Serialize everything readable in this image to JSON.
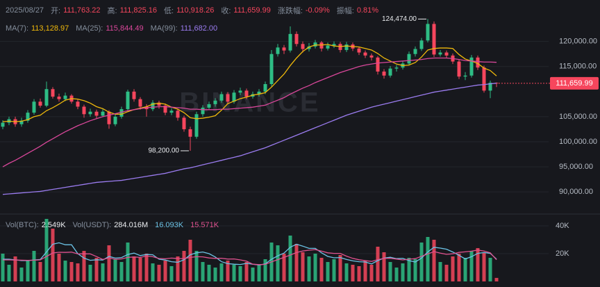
{
  "chart_data": {
    "type": "candlestick",
    "header": {
      "date": "2025/08/27",
      "fields": [
        {
          "label": "开:",
          "value": "111,763.22"
        },
        {
          "label": "高:",
          "value": "111,825.16"
        },
        {
          "label": "低:",
          "value": "110,918.26"
        },
        {
          "label": "收:",
          "value": "111,659.99"
        },
        {
          "label": "涨跌幅:",
          "value": "-0.09%"
        },
        {
          "label": "振幅:",
          "value": "0.81%"
        }
      ]
    },
    "watermark": "BINANCE",
    "ylim": [
      86000,
      125500
    ],
    "yticks": [
      {
        "value": 90000,
        "label": "90,000.00"
      },
      {
        "value": 95000,
        "label": "95,000.00"
      },
      {
        "value": 100000,
        "label": "100,000.00"
      },
      {
        "value": 105000,
        "label": "105,000.00"
      },
      {
        "value": 115000,
        "label": "115,000.00"
      },
      {
        "value": 120000,
        "label": "120,000.00"
      }
    ],
    "grid": true,
    "up_color": "#2ebd85",
    "down_color": "#f6465d",
    "candles": [
      [
        103000,
        104300,
        102500,
        103800
      ],
      [
        103800,
        105000,
        103300,
        104500
      ],
      [
        104500,
        105000,
        103000,
        103500
      ],
      [
        103500,
        104800,
        103000,
        104200
      ],
      [
        104200,
        106300,
        103800,
        105800
      ],
      [
        105800,
        108500,
        105400,
        108000
      ],
      [
        108000,
        108600,
        106800,
        107200
      ],
      [
        107200,
        112000,
        106900,
        110500
      ],
      [
        110500,
        110900,
        108600,
        109000
      ],
      [
        109000,
        109600,
        108000,
        108500
      ],
      [
        108500,
        109800,
        108100,
        109200
      ],
      [
        109200,
        109500,
        107600,
        108000
      ],
      [
        108000,
        108400,
        106500,
        107000
      ],
      [
        107000,
        107400,
        104800,
        105500
      ],
      [
        105500,
        106600,
        105000,
        106000
      ],
      [
        106000,
        106400,
        104700,
        105200
      ],
      [
        105200,
        106500,
        104900,
        106000
      ],
      [
        106000,
        106300,
        102600,
        103500
      ],
      [
        103500,
        105400,
        103100,
        105000
      ],
      [
        105000,
        107000,
        104600,
        106500
      ],
      [
        106500,
        110400,
        106200,
        110000
      ],
      [
        110000,
        110500,
        108000,
        108500
      ],
      [
        108500,
        108900,
        106400,
        107000
      ],
      [
        107000,
        107500,
        105000,
        106500
      ],
      [
        106500,
        108300,
        106100,
        107800
      ],
      [
        107800,
        108200,
        106600,
        107200
      ],
      [
        107200,
        107600,
        105300,
        105800
      ],
      [
        105800,
        106700,
        105300,
        106200
      ],
      [
        106200,
        106600,
        104200,
        104800
      ],
      [
        104800,
        105200,
        102000,
        102500
      ],
      [
        102500,
        103000,
        98200,
        101000
      ],
      [
        101000,
        106000,
        100600,
        105500
      ],
      [
        105500,
        107300,
        105000,
        106800
      ],
      [
        106800,
        108000,
        106300,
        107500
      ],
      [
        107500,
        108700,
        107000,
        108200
      ],
      [
        108200,
        110000,
        107800,
        109500
      ],
      [
        109500,
        109900,
        107500,
        108000
      ],
      [
        108000,
        110300,
        107600,
        109800
      ],
      [
        109800,
        110800,
        109300,
        110200
      ],
      [
        110200,
        110600,
        108500,
        109000
      ],
      [
        109000,
        110000,
        108600,
        109500
      ],
      [
        109500,
        110500,
        109000,
        110000
      ],
      [
        110000,
        112000,
        109500,
        111500
      ],
      [
        111500,
        118300,
        111000,
        117500
      ],
      [
        117500,
        119500,
        117000,
        118800
      ],
      [
        118800,
        119300,
        117500,
        118200
      ],
      [
        118200,
        123000,
        117800,
        121500
      ],
      [
        121500,
        122000,
        119000,
        119500
      ],
      [
        119500,
        120000,
        117800,
        118500
      ],
      [
        118500,
        119700,
        118000,
        119000
      ],
      [
        119000,
        120300,
        118600,
        119800
      ],
      [
        119800,
        120100,
        118000,
        118600
      ],
      [
        118600,
        119800,
        118200,
        119200
      ],
      [
        119200,
        120000,
        118700,
        119500
      ],
      [
        119500,
        119900,
        117800,
        118300
      ],
      [
        118300,
        119900,
        117900,
        119400
      ],
      [
        119400,
        119800,
        118100,
        118600
      ],
      [
        118600,
        119000,
        117300,
        117800
      ],
      [
        117800,
        118200,
        116700,
        117200
      ],
      [
        117200,
        117600,
        116200,
        116800
      ],
      [
        116800,
        117100,
        113400,
        114000
      ],
      [
        114000,
        114500,
        112600,
        113200
      ],
      [
        113200,
        115100,
        112800,
        114600
      ],
      [
        114600,
        115300,
        114000,
        114800
      ],
      [
        114800,
        116100,
        114400,
        115600
      ],
      [
        115600,
        118000,
        115200,
        117500
      ],
      [
        117500,
        119000,
        117000,
        118500
      ],
      [
        118500,
        120700,
        118100,
        120200
      ],
      [
        120200,
        124474,
        119800,
        123500
      ],
      [
        123500,
        124000,
        116900,
        117400
      ],
      [
        117400,
        118300,
        117000,
        117800
      ],
      [
        117800,
        118200,
        116700,
        117200
      ],
      [
        117200,
        117600,
        115500,
        116000
      ],
      [
        116000,
        116400,
        112500,
        113000
      ],
      [
        113000,
        113900,
        112300,
        113200
      ],
      [
        113200,
        117300,
        112800,
        116800
      ],
      [
        116800,
        117200,
        114300,
        114800
      ],
      [
        114800,
        115200,
        109800,
        110200
      ],
      [
        110200,
        112200,
        108700,
        111763.22
      ],
      [
        111763.22,
        111825.16,
        110918.26,
        111659.99
      ]
    ],
    "series": [
      {
        "name": "MA(7):",
        "last_label": "113,128.97",
        "color": "#f0b90b",
        "values": [
          104000,
          104100,
          104000,
          104100,
          104400,
          105000,
          105300,
          106200,
          106800,
          107500,
          108300,
          108600,
          108500,
          108200,
          107700,
          107000,
          106600,
          105900,
          105500,
          105500,
          106000,
          106400,
          106700,
          107000,
          107500,
          107700,
          107500,
          106900,
          106500,
          105800,
          104800,
          104600,
          104700,
          104900,
          105200,
          106300,
          107600,
          108100,
          108600,
          108900,
          109300,
          109500,
          109800,
          110900,
          112200,
          113500,
          115200,
          116700,
          118000,
          118900,
          119300,
          119300,
          119400,
          119100,
          119000,
          119100,
          119000,
          118900,
          118600,
          118300,
          117600,
          116700,
          116100,
          115500,
          115200,
          115300,
          115800,
          116900,
          118300,
          118600,
          118700,
          118700,
          118600,
          117400,
          116500,
          116100,
          115600,
          114700,
          114200,
          113128.97
        ]
      },
      {
        "name": "MA(25):",
        "last_label": "115,844.49",
        "color": "#d9479a",
        "values": [
          95000,
          95700,
          96300,
          97000,
          97700,
          98400,
          99100,
          99900,
          100600,
          101300,
          102000,
          102600,
          103200,
          103700,
          104200,
          104600,
          105000,
          105300,
          105600,
          105900,
          106200,
          106400,
          106600,
          106800,
          106900,
          107000,
          107000,
          106900,
          106800,
          106700,
          106500,
          106500,
          106400,
          106400,
          106400,
          106500,
          106500,
          106600,
          106700,
          106800,
          106900,
          107100,
          107300,
          107800,
          108300,
          108800,
          109500,
          110100,
          110700,
          111200,
          111800,
          112300,
          112800,
          113300,
          113800,
          114200,
          114600,
          115000,
          115300,
          115500,
          115700,
          115800,
          115900,
          116000,
          116100,
          116200,
          116300,
          116400,
          116600,
          116700,
          116700,
          116700,
          116600,
          116400,
          116200,
          116100,
          116000,
          115900,
          115900,
          115844.49
        ]
      },
      {
        "name": "MA(99):",
        "last_label": "111,682.00",
        "color": "#9b7cf0",
        "values": [
          89500,
          89600,
          89700,
          89800,
          89900,
          90000,
          90100,
          90300,
          90500,
          90700,
          90900,
          91100,
          91300,
          91500,
          91700,
          91900,
          92000,
          92100,
          92200,
          92300,
          92500,
          92700,
          92900,
          93100,
          93300,
          93500,
          93700,
          94000,
          94300,
          94600,
          94800,
          95100,
          95400,
          95700,
          96000,
          96300,
          96600,
          96900,
          97200,
          97600,
          98000,
          98400,
          98800,
          99300,
          99800,
          100300,
          100800,
          101300,
          101800,
          102300,
          102800,
          103300,
          103800,
          104300,
          104800,
          105300,
          105700,
          106100,
          106500,
          106900,
          107200,
          107500,
          107800,
          108100,
          108400,
          108700,
          109000,
          109300,
          109600,
          109900,
          110100,
          110300,
          110500,
          110700,
          110900,
          111100,
          111300,
          111400,
          111550,
          111682
        ]
      }
    ],
    "last_price": {
      "value": 111659.99,
      "label": "111,659.99"
    },
    "annotations": [
      {
        "value": 124474,
        "label": "124,474.00"
      },
      {
        "value": 98200,
        "label": "98,200.00"
      }
    ],
    "volume": {
      "ylim": [
        0,
        50000
      ],
      "yticks": [
        {
          "value": 20000,
          "label": "20K"
        },
        {
          "value": 40000,
          "label": "40K"
        }
      ],
      "legend": [
        {
          "label": "Vol(BTC):",
          "value": "2.549K"
        },
        {
          "label": "Vol(USDT):",
          "value": "284.016M"
        }
      ],
      "values": [
        20000,
        12000,
        18000,
        10000,
        15000,
        22000,
        14000,
        45000,
        38000,
        20000,
        15000,
        14000,
        13000,
        22000,
        12000,
        17000,
        13000,
        26000,
        16000,
        14000,
        28000,
        18000,
        17000,
        20000,
        13000,
        12000,
        15000,
        11000,
        18000,
        22000,
        30000,
        22000,
        14000,
        12000,
        10000,
        13000,
        15000,
        12000,
        11000,
        14000,
        10000,
        12000,
        16000,
        28000,
        26000,
        20000,
        33000,
        27000,
        21000,
        18000,
        20000,
        17000,
        14000,
        16000,
        19000,
        13000,
        12000,
        11000,
        15000,
        12000,
        25000,
        21000,
        14000,
        10000,
        13000,
        17000,
        16000,
        28000,
        32000,
        30000,
        14000,
        12000,
        18000,
        20000,
        17000,
        22000,
        24000,
        21000,
        17000,
        2549
      ],
      "series": [
        {
          "last_label": "16.093K",
          "color": "#6cc3e6",
          "values": [
            16000,
            16000,
            15500,
            15000,
            15000,
            15400,
            15800,
            21200,
            26800,
            27800,
            26400,
            26400,
            20000,
            16800,
            15200,
            15600,
            15400,
            18000,
            16800,
            17200,
            19400,
            20400,
            18600,
            19400,
            19200,
            16000,
            15400,
            14200,
            13800,
            15600,
            19200,
            20600,
            21200,
            20000,
            17600,
            14200,
            12800,
            12400,
            12200,
            13000,
            12400,
            11800,
            12600,
            16000,
            18400,
            20400,
            24600,
            26800,
            25400,
            23800,
            23800,
            20600,
            18000,
            17000,
            17200,
            15800,
            14800,
            14200,
            14000,
            12600,
            15000,
            16800,
            17400,
            16400,
            16600,
            15000,
            14000,
            16800,
            21200,
            24600,
            24000,
            23200,
            21200,
            18800,
            16200,
            17800,
            20200,
            20800,
            20200,
            16093
          ]
        },
        {
          "last_label": "15.571K",
          "color": "#e0528f",
          "values": [
            15500,
            15500,
            15400,
            15300,
            15200,
            15300,
            15500,
            18000,
            20500,
            21000,
            20900,
            21100,
            19800,
            19900,
            19800,
            17900,
            15800,
            17000,
            15900,
            16200,
            17300,
            17600,
            17300,
            18300,
            17800,
            16500,
            16300,
            16800,
            16500,
            16400,
            17300,
            17800,
            17700,
            16900,
            16600,
            16700,
            16100,
            16200,
            15500,
            14600,
            12400,
            12100,
            12300,
            14100,
            15700,
            17300,
            19000,
            20800,
            21900,
            22500,
            22900,
            21800,
            20600,
            20200,
            20200,
            18200,
            16600,
            15600,
            15000,
            14400,
            15700,
            16600,
            16700,
            16100,
            15500,
            16000,
            16400,
            18100,
            19800,
            21500,
            20400,
            19500,
            19900,
            20900,
            21300,
            21800,
            22600,
            21900,
            20600,
            15571
          ]
        }
      ]
    }
  }
}
